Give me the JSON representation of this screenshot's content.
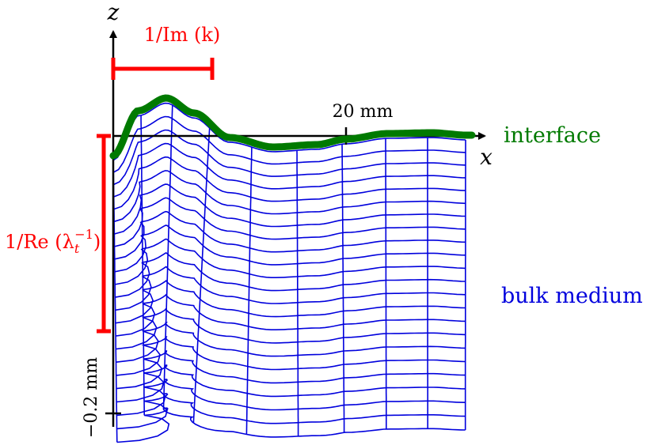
{
  "labels": {
    "z_axis": "z",
    "x_axis": "x",
    "im_k_label": "1/Im (k)",
    "re_lambda_label": "1/Re (λ",
    "re_lambda_sub": "t",
    "re_lambda_sup": "−1",
    "re_lambda_close": ")",
    "x_tick_label": "20 mm",
    "z_tick_label": "−0.2 mm",
    "interface_label": "interface",
    "bulk_label": "bulk medium"
  },
  "colors": {
    "axis": "#000000",
    "interface": "#007a00",
    "mesh": "#0000dd",
    "annotation": "#ff0000"
  }
}
